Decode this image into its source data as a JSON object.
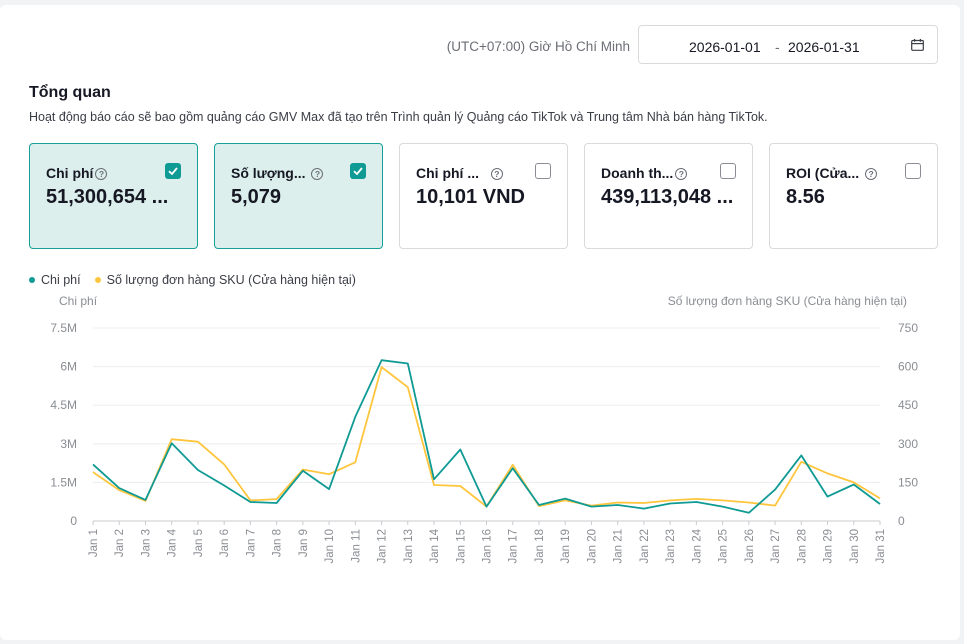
{
  "header": {
    "timezone": "(UTC+07:00) Giờ Hồ Chí Minh",
    "date_start": "2026-01-01",
    "date_sep": "-",
    "date_end": "2026-01-31",
    "calendar_icon": "calendar-icon"
  },
  "overview": {
    "title": "Tổng quan",
    "subtitle": "Hoạt động báo cáo sẽ bao gồm quảng cáo GMV Max đã tạo trên Trình quản lý Quảng cáo TikTok và Trung tâm Nhà bán hàng TikTok."
  },
  "cards": [
    {
      "label": "Chi phí",
      "value": "51,300,654 ...",
      "checked": true
    },
    {
      "label": "Số lượng...",
      "value": "5,079",
      "checked": true
    },
    {
      "label": "Chi phí ...",
      "value": "10,101 VND",
      "checked": false
    },
    {
      "label": "Doanh th...",
      "value": "439,113,048 ...",
      "checked": false
    },
    {
      "label": "ROI (Cửa...",
      "value": "8.56",
      "checked": false
    }
  ],
  "colors": {
    "accent": "#0f9a94",
    "series_cost": "#0f9a94",
    "series_orders": "#ffc53d"
  },
  "chart_data": {
    "type": "line",
    "legend": [
      "Chi phí",
      "Số lượng đơn hàng SKU (Cửa hàng hiện tại)"
    ],
    "legend_position": "top-left",
    "grid": true,
    "x": [
      "Jan 1",
      "Jan 2",
      "Jan 3",
      "Jan 4",
      "Jan 5",
      "Jan 6",
      "Jan 7",
      "Jan 8",
      "Jan 9",
      "Jan 10",
      "Jan 11",
      "Jan 12",
      "Jan 13",
      "Jan 14",
      "Jan 15",
      "Jan 16",
      "Jan 17",
      "Jan 18",
      "Jan 19",
      "Jan 20",
      "Jan 21",
      "Jan 22",
      "Jan 23",
      "Jan 24",
      "Jan 25",
      "Jan 26",
      "Jan 27",
      "Jan 28",
      "Jan 29",
      "Jan 30",
      "Jan 31"
    ],
    "y_left": {
      "label": "Chi phí",
      "ticks": [
        "0",
        "1.5M",
        "3M",
        "4.5M",
        "6M",
        "7.5M"
      ],
      "ylim": [
        0,
        7500000
      ]
    },
    "y_right": {
      "label": "Số lượng đơn hàng SKU (Cửa hàng hiện tại)",
      "ticks": [
        "0",
        "150",
        "300",
        "450",
        "600",
        "750"
      ],
      "ylim": [
        0,
        750
      ]
    },
    "series": [
      {
        "name": "Chi phí",
        "axis": "left",
        "values": [
          2200000,
          1280000,
          820000,
          3020000,
          1980000,
          1380000,
          740000,
          700000,
          1950000,
          1240000,
          4050000,
          6250000,
          6120000,
          1620000,
          2780000,
          560000,
          2050000,
          620000,
          870000,
          560000,
          620000,
          480000,
          680000,
          740000,
          560000,
          320000,
          1220000,
          2550000,
          950000,
          1420000,
          660000
        ]
      },
      {
        "name": "Số lượng đơn hàng SKU (Cửa hàng hiện tại)",
        "axis": "right",
        "values": [
          190,
          120,
          78,
          318,
          308,
          220,
          80,
          85,
          200,
          182,
          228,
          598,
          520,
          140,
          136,
          56,
          218,
          58,
          80,
          60,
          72,
          70,
          80,
          86,
          80,
          72,
          60,
          230,
          185,
          150,
          88
        ]
      }
    ]
  }
}
